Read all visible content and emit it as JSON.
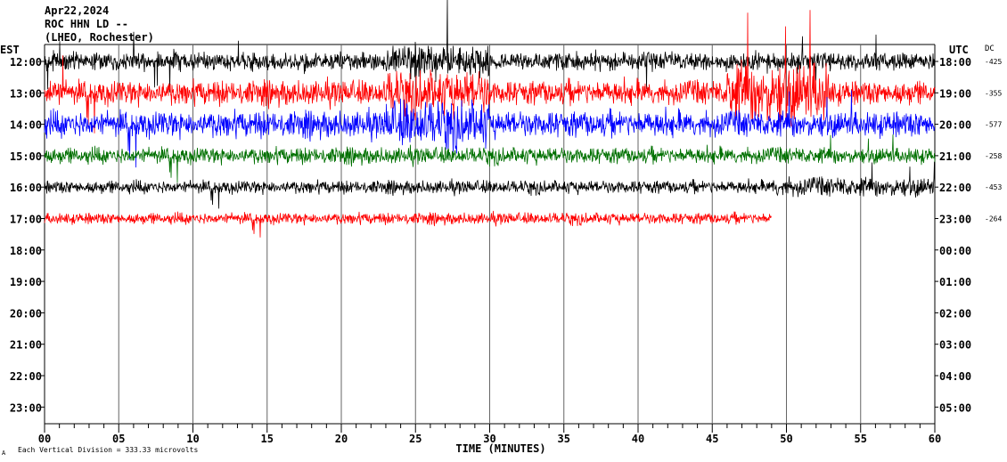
{
  "header": {
    "date": "Apr22,2024",
    "station": "ROC HHN LD --",
    "location": "(LHEO, Rochester)"
  },
  "labels": {
    "left_zone": "EST",
    "right_zone": "UTC",
    "dc_header": "DC",
    "x_axis_title": "TIME (MINUTES)",
    "footer_prefix": "A",
    "footer_note": "Each Vertical Division =  333.33 microvolts"
  },
  "colors": {
    "background": "#ffffff",
    "axis": "#000000",
    "grid": "#666666",
    "trace_cycle": [
      "#000000",
      "#ff0000",
      "#0000ff",
      "#007000"
    ]
  },
  "chart_data": {
    "type": "line",
    "title": "",
    "xlabel": "TIME (MINUTES)",
    "ylabel": "",
    "xlim": [
      0,
      60
    ],
    "x_ticks": [
      "00",
      "05",
      "10",
      "15",
      "20",
      "25",
      "30",
      "35",
      "40",
      "45",
      "50",
      "55",
      "60"
    ],
    "local_hours": [
      "12:00",
      "13:00",
      "14:00",
      "15:00",
      "16:00",
      "17:00",
      "18:00",
      "19:00",
      "20:00",
      "21:00",
      "22:00",
      "23:00"
    ],
    "utc_hours": [
      "18:00",
      "19:00",
      "20:00",
      "21:00",
      "22:00",
      "23:00",
      "00:00",
      "01:00",
      "02:00",
      "03:00",
      "04:00",
      "05:00"
    ],
    "dc_offsets": [
      "-425",
      "-355",
      "-577",
      "-258",
      "-453",
      "-264"
    ],
    "grid": true,
    "series": [
      {
        "hour": "12:00",
        "color": "#000000",
        "x_end": 60,
        "amplitude": 0.55
      },
      {
        "hour": "13:00",
        "color": "#ff0000",
        "x_end": 60,
        "amplitude": 0.75
      },
      {
        "hour": "14:00",
        "color": "#0000ff",
        "x_end": 60,
        "amplitude": 0.8
      },
      {
        "hour": "15:00",
        "color": "#007000",
        "x_end": 60,
        "amplitude": 0.5
      },
      {
        "hour": "16:00",
        "color": "#000000",
        "x_end": 60,
        "amplitude": 0.4
      },
      {
        "hour": "17:00",
        "color": "#ff0000",
        "x_end": 49,
        "amplitude": 0.35
      }
    ]
  }
}
